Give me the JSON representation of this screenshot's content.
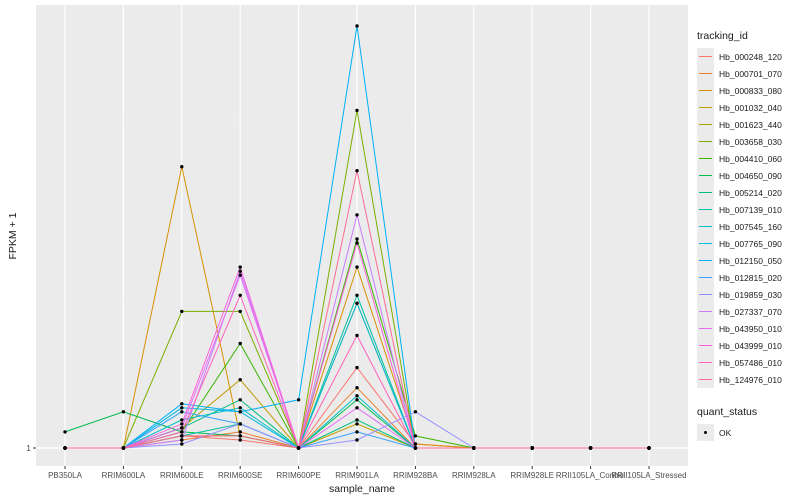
{
  "chart_data": {
    "type": "line",
    "xlabel": "sample_name",
    "ylabel": "FPKM + 1",
    "y_ticks": [
      "1"
    ],
    "ylim": [
      0,
      100
    ],
    "grid": true,
    "legend_position": "right",
    "categories": [
      "PB350LA",
      "RRIM600LA",
      "RRIM600LE",
      "RRIM600SE",
      "RRIM600PE",
      "RRIM901LA",
      "RRIM928BA",
      "RRIM928LA",
      "RRIM928LE",
      "RRII105LA_Control",
      "RRII105LA_Stressed"
    ],
    "color_legend_title": "tracking_id",
    "shape_legend_title": "quant_status",
    "shape_legend_items": [
      "OK"
    ],
    "series": [
      {
        "name": "Hb_000248_120",
        "color": "#F8766D",
        "values": [
          0,
          0,
          3,
          2,
          0,
          20,
          1,
          0,
          0,
          0,
          0
        ]
      },
      {
        "name": "Hb_000701_070",
        "color": "#EA8331",
        "values": [
          0,
          0,
          2,
          4,
          0,
          15,
          0,
          0,
          0,
          0,
          0
        ]
      },
      {
        "name": "Hb_000833_080",
        "color": "#D89000",
        "values": [
          0,
          0,
          70,
          3,
          0,
          45,
          1,
          0,
          0,
          0,
          0
        ]
      },
      {
        "name": "Hb_001032_040",
        "color": "#C09B00",
        "values": [
          0,
          0,
          5,
          17,
          0,
          6,
          0,
          0,
          0,
          0,
          0
        ]
      },
      {
        "name": "Hb_001623_440",
        "color": "#A3A500",
        "values": [
          0,
          0,
          3,
          3,
          0,
          36,
          0,
          0,
          0,
          0,
          0
        ]
      },
      {
        "name": "Hb_003658_030",
        "color": "#7CAE00",
        "values": [
          0,
          0,
          34,
          34,
          0,
          84,
          0,
          0,
          0,
          0,
          0
        ]
      },
      {
        "name": "Hb_004410_060",
        "color": "#39B600",
        "values": [
          0,
          0,
          4,
          26,
          0,
          52,
          3,
          0,
          0,
          0,
          0
        ]
      },
      {
        "name": "Hb_004650_090",
        "color": "#00BB4E",
        "values": [
          4,
          9,
          4,
          3,
          0,
          12,
          0,
          0,
          0,
          0,
          0
        ]
      },
      {
        "name": "Hb_005214_020",
        "color": "#00BF7D",
        "values": [
          0,
          0,
          5,
          12,
          0,
          7,
          0,
          0,
          0,
          0,
          0
        ]
      },
      {
        "name": "Hb_007139_010",
        "color": "#00C1A3",
        "values": [
          0,
          0,
          3,
          6,
          0,
          38,
          0,
          0,
          0,
          0,
          0
        ]
      },
      {
        "name": "Hb_007545_160",
        "color": "#00BFC4",
        "values": [
          0,
          0,
          7,
          10,
          0,
          13,
          0,
          0,
          0,
          0,
          0
        ]
      },
      {
        "name": "Hb_007765_090",
        "color": "#00BAE0",
        "values": [
          0,
          0,
          10,
          9,
          0,
          36,
          0,
          0,
          0,
          0,
          0
        ]
      },
      {
        "name": "Hb_012150_050",
        "color": "#00B0F6",
        "values": [
          0,
          0,
          11,
          9,
          12,
          105,
          0,
          0,
          0,
          0,
          0
        ]
      },
      {
        "name": "Hb_012815_020",
        "color": "#35A2FF",
        "values": [
          0,
          0,
          9,
          6,
          0,
          4,
          0,
          0,
          0,
          0,
          0
        ]
      },
      {
        "name": "Hb_019859_030",
        "color": "#9590FF",
        "values": [
          0,
          0,
          1,
          6,
          0,
          2,
          9,
          0,
          0,
          0,
          0
        ]
      },
      {
        "name": "Hb_027337_070",
        "color": "#C77CFF",
        "values": [
          0,
          0,
          2,
          44,
          0,
          58,
          0,
          0,
          0,
          0,
          0
        ]
      },
      {
        "name": "Hb_043950_010",
        "color": "#E76BF3",
        "values": [
          0,
          0,
          5,
          43,
          0,
          10,
          0,
          0,
          0,
          0,
          0
        ]
      },
      {
        "name": "Hb_043999_010",
        "color": "#FA62DB",
        "values": [
          0,
          0,
          6,
          45,
          0,
          51,
          0,
          0,
          0,
          0,
          0
        ]
      },
      {
        "name": "Hb_057486_010",
        "color": "#FF62BC",
        "values": [
          0,
          0,
          4,
          38,
          0,
          28,
          0,
          0,
          0,
          0,
          0
        ]
      },
      {
        "name": "Hb_124976_010",
        "color": "#FF6C91",
        "values": [
          0,
          0,
          3,
          3,
          0,
          69,
          0,
          0,
          0,
          0,
          0
        ]
      }
    ]
  }
}
